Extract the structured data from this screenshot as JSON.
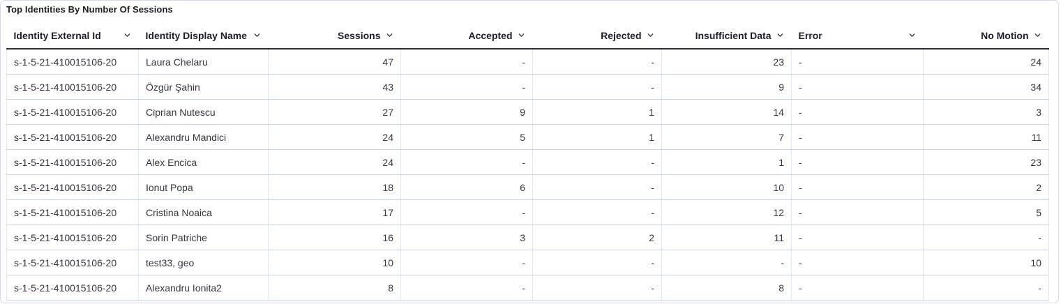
{
  "panel": {
    "title": "Top Identities By Number Of Sessions"
  },
  "colors": {
    "header_text": "#1d202b",
    "cell_text": "#343741",
    "header_underline": "#2b2e3b",
    "row_border": "#ccd5e0",
    "panel_border": "#d3dae6"
  },
  "icons": {
    "sort": "chevron-down-icon"
  },
  "table": {
    "columns": [
      {
        "label": "Identity External Id",
        "align": "left"
      },
      {
        "label": "Identity Display Name",
        "align": "left"
      },
      {
        "label": "Sessions",
        "align": "right"
      },
      {
        "label": "Accepted",
        "align": "right"
      },
      {
        "label": "Rejected",
        "align": "right"
      },
      {
        "label": "Insufficient Data",
        "align": "right"
      },
      {
        "label": "Error",
        "align": "left"
      },
      {
        "label": "No Motion",
        "align": "right"
      }
    ],
    "rows": [
      [
        "s-1-5-21-410015106-20",
        "Laura Chelaru",
        "47",
        "-",
        "-",
        "23",
        "-",
        "24"
      ],
      [
        "s-1-5-21-410015106-20",
        "Özgür Şahin",
        "43",
        "-",
        "-",
        "9",
        "-",
        "34"
      ],
      [
        "s-1-5-21-410015106-20",
        "Ciprian Nutescu",
        "27",
        "9",
        "1",
        "14",
        "-",
        "3"
      ],
      [
        "s-1-5-21-410015106-20",
        "Alexandru Mandici",
        "24",
        "5",
        "1",
        "7",
        "-",
        "11"
      ],
      [
        "s-1-5-21-410015106-20",
        "Alex Encica",
        "24",
        "-",
        "-",
        "1",
        "-",
        "23"
      ],
      [
        "s-1-5-21-410015106-20",
        "Ionut Popa",
        "18",
        "6",
        "-",
        "10",
        "-",
        "2"
      ],
      [
        "s-1-5-21-410015106-20",
        "Cristina Noaica",
        "17",
        "-",
        "-",
        "12",
        "-",
        "5"
      ],
      [
        "s-1-5-21-410015106-20",
        "Sorin Patriche",
        "16",
        "3",
        "2",
        "11",
        "-",
        "-"
      ],
      [
        "s-1-5-21-410015106-20",
        "test33, geo",
        "10",
        "-",
        "-",
        "-",
        "-",
        "10"
      ],
      [
        "s-1-5-21-410015106-20",
        "Alexandru Ionita2",
        "8",
        "-",
        "-",
        "8",
        "-",
        "-"
      ]
    ]
  }
}
